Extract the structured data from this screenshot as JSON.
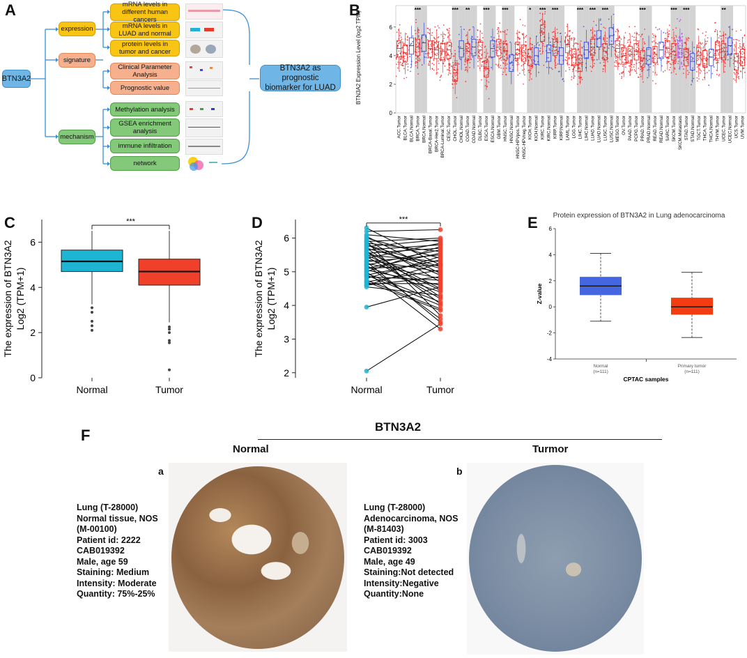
{
  "panel_labels": {
    "a": "A",
    "b": "B",
    "c": "C",
    "d": "D",
    "e": "E",
    "f": "F"
  },
  "panel_a": {
    "root": "BTN3A2",
    "groups": [
      {
        "name": "expression",
        "items": [
          "mRNA levels in different human cancers",
          "mRNA levels in LUAD and normal",
          "protein levels in tumor and cancer"
        ]
      },
      {
        "name": "signature",
        "items": [
          "Clinical Parameter Analysis",
          "Prognostic value"
        ]
      },
      {
        "name": "mechanism",
        "items": [
          "Methylation analysis",
          "GSEA enrichment analysis",
          "immune infiltration",
          "network"
        ]
      }
    ],
    "conclusion": "BTN3A2 as prognostic biomarker for LUAD"
  },
  "panel_b": {
    "chart_data": {
      "type": "box",
      "ylabel": "BTN3A2 Expression Level (log2 TPM)",
      "yticks": [
        0,
        2,
        4,
        6
      ],
      "categories": [
        "ACC.Tumor",
        "BLCA.Tumor",
        "BLCA.Normal",
        "BRCA.Tumor",
        "BRCA.Normal",
        "BRCA-Basal.Tumor",
        "BRCA-Her2.Tumor",
        "BRCA-Luminal.Tumor",
        "CESC.Tumor",
        "CHOL.Tumor",
        "CHOL.Normal",
        "COAD.Tumor",
        "COAD.Normal",
        "DLBC.Tumor",
        "ESCA.Tumor",
        "ESCA.Normal",
        "GBM.Tumor",
        "HNSC.Tumor",
        "HNSC.Normal",
        "HNSC-HPVpos.Tumor",
        "HNSC-HPVneg.Tumor",
        "KICH.Tumor",
        "KICH.Normal",
        "KIRC.Tumor",
        "KIRC.Normal",
        "KIRP.Tumor",
        "KIRP.Normal",
        "LAML.Tumor",
        "LGG.Tumor",
        "LIHC.Tumor",
        "LIHC.Normal",
        "LUAD.Tumor",
        "LUAD.Normal",
        "LUSC.Tumor",
        "LUSC.Normal",
        "MESO.Tumor",
        "OV.Tumor",
        "PAAD.Tumor",
        "PCPG.Tumor",
        "PRAD.Tumor",
        "PRAD.Normal",
        "READ.Tumor",
        "READ.Normal",
        "SARC.Tumor",
        "SKCM.Tumor",
        "SKCM.Metastasis",
        "STAD.Tumor",
        "STAD.Normal",
        "TGCT.Tumor",
        "THCA.Tumor",
        "THCA.Normal",
        "THYM.Tumor",
        "UCEC.Tumor",
        "UCEC.Normal",
        "UCS.Tumor",
        "UVM.Tumor"
      ],
      "medians": [
        4.5,
        4.2,
        4.7,
        4.6,
        4.9,
        4.5,
        4.4,
        4.3,
        4.4,
        2.8,
        4.5,
        4.3,
        4.6,
        4.4,
        3.1,
        4.5,
        4.6,
        4.3,
        3.5,
        4.4,
        4.2,
        3.9,
        4.0,
        5.6,
        4.2,
        4.6,
        4.0,
        4.8,
        3.9,
        3.5,
        4.4,
        4.6,
        5.2,
        4.3,
        5.4,
        4.5,
        4.0,
        4.1,
        4.3,
        3.8,
        4.0,
        4.1,
        4.4,
        4.5,
        4.3,
        4.5,
        3.9,
        3.6,
        4.0,
        3.8,
        3.9,
        4.4,
        4.3,
        4.7,
        3.6,
        3.9
      ],
      "significance": [
        {
          "group": "BRCA",
          "label": "***"
        },
        {
          "group": "CHOL",
          "label": "***"
        },
        {
          "group": "COAD",
          "label": "**"
        },
        {
          "group": "ESCA",
          "label": "***"
        },
        {
          "group": "HNSC",
          "label": "***"
        },
        {
          "group": "KICH",
          "label": "*"
        },
        {
          "group": "KIRC",
          "label": "***"
        },
        {
          "group": "KIRP",
          "label": "***"
        },
        {
          "group": "LIHC",
          "label": "***"
        },
        {
          "group": "LUAD",
          "label": "***"
        },
        {
          "group": "LUSC",
          "label": "***"
        },
        {
          "group": "PRAD",
          "label": "***"
        },
        {
          "group": "SKCM",
          "label": "***"
        },
        {
          "group": "STAD",
          "label": "***"
        },
        {
          "group": "UCEC",
          "label": "**"
        }
      ]
    }
  },
  "panel_c": {
    "chart_data": {
      "type": "box",
      "ylabel_line1": "The expression of BTN3A2",
      "ylabel_line2": "Log2 (TPM+1)",
      "categories": [
        "Normal",
        "Tumor"
      ],
      "yticks": [
        0,
        2,
        4,
        6
      ],
      "ylim": [
        0,
        7
      ],
      "boxes": [
        {
          "name": "Normal",
          "q1": 4.7,
          "median": 5.15,
          "q3": 5.65,
          "low": 3.25,
          "high": 6.5,
          "color": "#1eb4d4"
        },
        {
          "name": "Tumor",
          "q1": 4.1,
          "median": 4.7,
          "q3": 5.25,
          "low": 2.45,
          "high": 6.5,
          "color": "#f0402a"
        }
      ],
      "outliers": {
        "Normal": [
          3.1,
          2.9,
          2.5,
          2.3,
          2.1
        ],
        "Tumor": [
          2.25,
          2.15,
          2.0,
          1.65,
          1.55,
          0.35
        ]
      },
      "significance": "***"
    }
  },
  "panel_d": {
    "chart_data": {
      "type": "paired-scatter",
      "ylabel_line1": "The expression of BTN3A2",
      "ylabel_line2": "Log2 (TPM+1)",
      "categories": [
        "Normal",
        "Tumor"
      ],
      "yticks": [
        2,
        3,
        4,
        5,
        6
      ],
      "ylim": [
        1.85,
        6.55
      ],
      "significance": "***",
      "pairs": [
        [
          6.3,
          5.2
        ],
        [
          6.2,
          6.25
        ],
        [
          6.1,
          5.9
        ],
        [
          6.0,
          5.4
        ],
        [
          5.95,
          4.7
        ],
        [
          5.9,
          6.0
        ],
        [
          5.85,
          5.6
        ],
        [
          5.8,
          4.9
        ],
        [
          5.75,
          5.95
        ],
        [
          5.7,
          5.1
        ],
        [
          5.65,
          5.8
        ],
        [
          5.6,
          4.5
        ],
        [
          5.55,
          5.7
        ],
        [
          5.5,
          5.3
        ],
        [
          5.45,
          4.2
        ],
        [
          5.4,
          5.85
        ],
        [
          5.35,
          5.0
        ],
        [
          5.3,
          5.5
        ],
        [
          5.25,
          4.8
        ],
        [
          5.2,
          5.65
        ],
        [
          5.15,
          4.4
        ],
        [
          5.1,
          5.2
        ],
        [
          5.05,
          4.6
        ],
        [
          5.0,
          5.75
        ],
        [
          4.95,
          4.1
        ],
        [
          4.9,
          5.35
        ],
        [
          4.85,
          4.75
        ],
        [
          4.8,
          5.45
        ],
        [
          4.75,
          3.9
        ],
        [
          4.7,
          5.05
        ],
        [
          4.65,
          4.65
        ],
        [
          4.6,
          5.25
        ],
        [
          4.55,
          4.3
        ],
        [
          5.9,
          3.7
        ],
        [
          5.3,
          3.5
        ],
        [
          5.6,
          4.05
        ],
        [
          5.0,
          3.3
        ],
        [
          4.7,
          3.85
        ],
        [
          6.05,
          4.95
        ],
        [
          5.5,
          4.45
        ],
        [
          5.8,
          5.15
        ],
        [
          4.9,
          4.0
        ],
        [
          5.2,
          3.6
        ],
        [
          3.95,
          4.55
        ],
        [
          2.05,
          3.45
        ],
        [
          5.7,
          4.25
        ],
        [
          5.1,
          5.55
        ],
        [
          4.6,
          4.85
        ]
      ]
    }
  },
  "panel_e": {
    "chart_data": {
      "type": "box",
      "title": "Protein expression of BTN3A2 in Lung adenocarcinoma",
      "ylabel": "Z-value",
      "xlabel": "CPTAC samples",
      "yticks": [
        -4,
        -2,
        0,
        2,
        4,
        6
      ],
      "ylim": [
        -4,
        6
      ],
      "categories": [
        "Normal",
        "Primary tumor"
      ],
      "n_labels": [
        "(n=111)",
        "(n=111)"
      ],
      "boxes": [
        {
          "name": "Normal",
          "q1": 0.9,
          "median": 1.6,
          "q3": 2.3,
          "low": -1.1,
          "high": 4.1,
          "color": "#4466e0"
        },
        {
          "name": "Primary tumor",
          "q1": -0.6,
          "median": 0.0,
          "q3": 0.7,
          "low": -2.35,
          "high": 2.65,
          "color": "#f23d12"
        }
      ]
    }
  },
  "panel_f": {
    "title": "BTN3A2",
    "normal_label": "Normal",
    "tumor_label": "Turmor",
    "sub_a": "a",
    "sub_b": "b",
    "normal_info": [
      "Lung (T-28000)",
      "Normal tissue, NOS",
      "(M-00100)",
      "Patient id: 2222",
      "CAB019392",
      "Male, age 59",
      "Staining: Medium",
      "Intensity:  Moderate",
      "Quantity:  75%-25%"
    ],
    "tumor_info": [
      "Lung (T-28000)",
      "Adenocarcinoma, NOS",
      "(M-81403)",
      "Patient id: 3003",
      "CAB019392",
      "Male, age 49",
      "Staining:Not detected",
      "Intensity:Negative",
      "Quantity:None"
    ]
  }
}
